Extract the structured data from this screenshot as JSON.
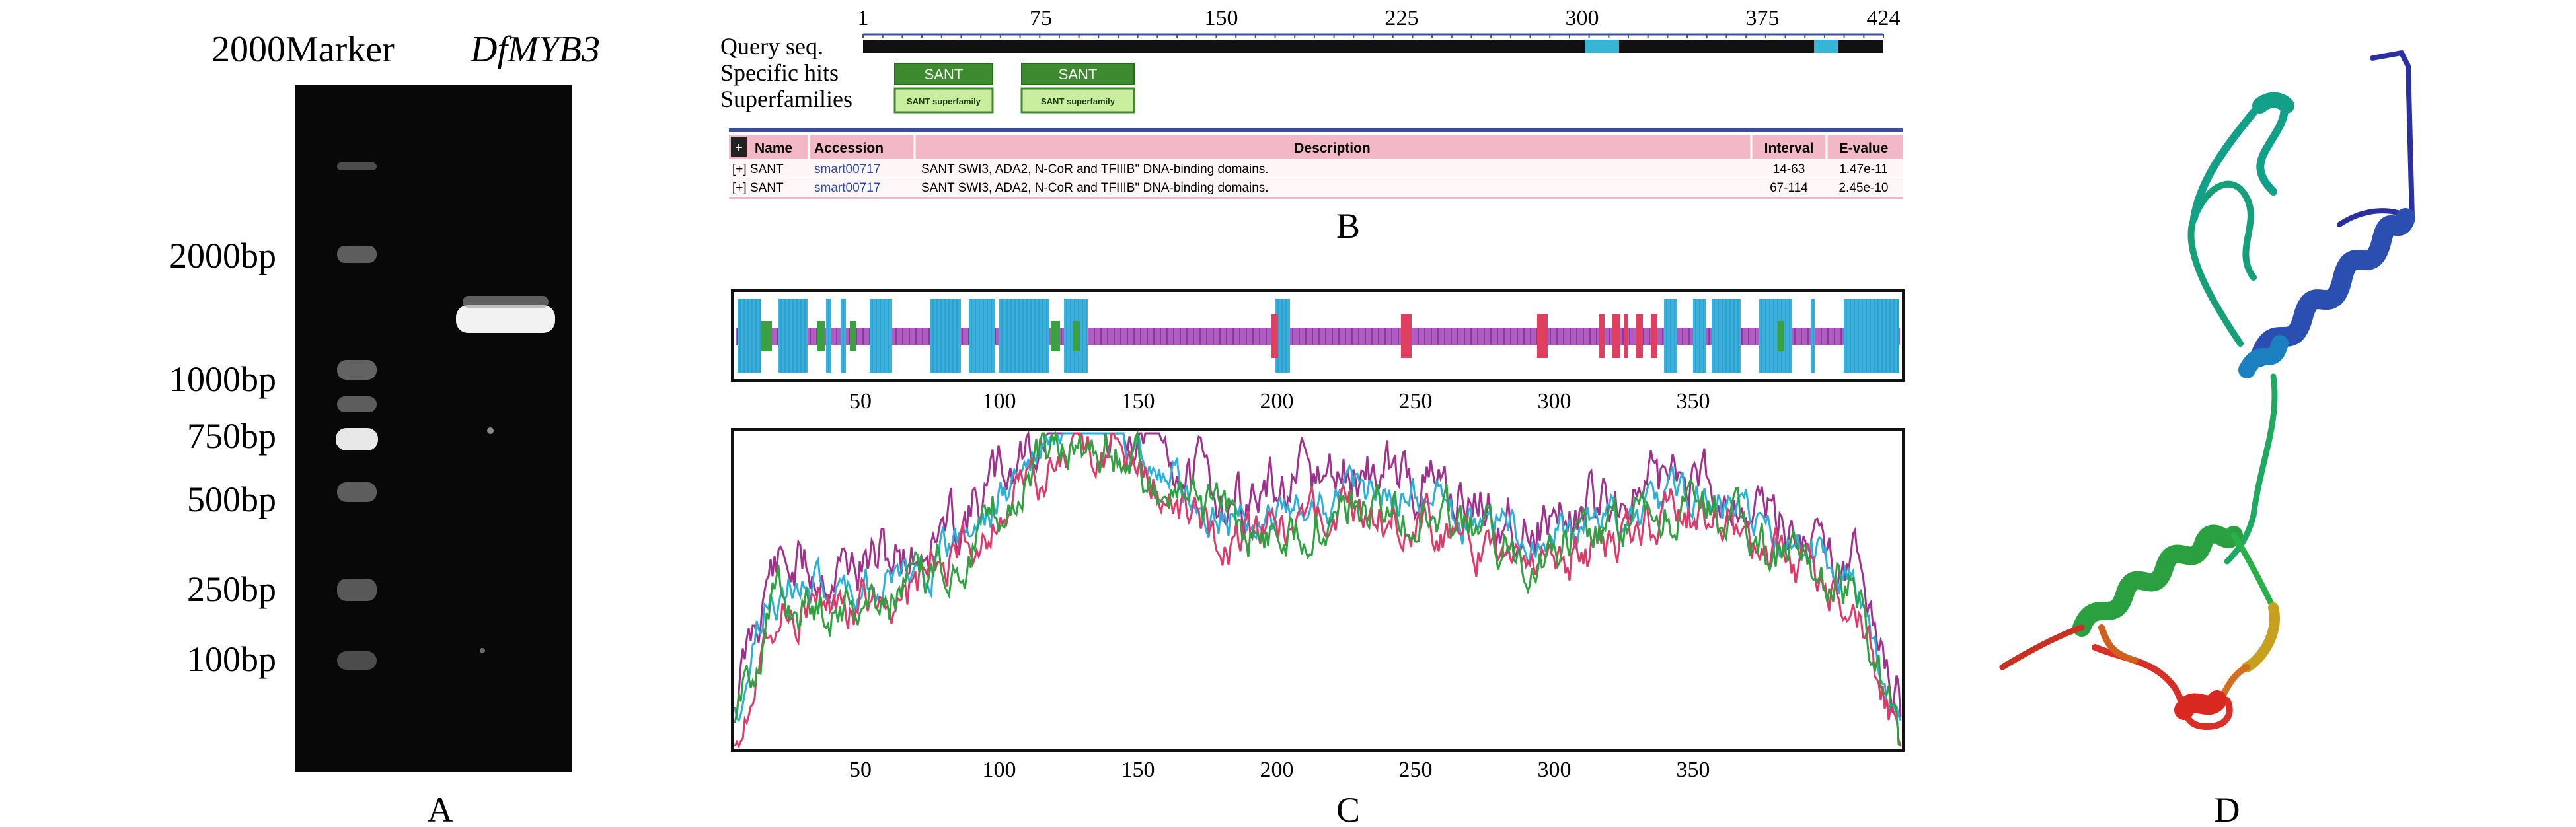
{
  "panelA": {
    "header_marker": "2000Marker",
    "header_gene": "DfMYB3",
    "ladder": [
      "2000bp",
      "1000bp",
      "750bp",
      "500bp",
      "250bp",
      "100bp"
    ],
    "caption": "A"
  },
  "panelB": {
    "labels": [
      "Query seq.",
      "Specific hits",
      "Superfamilies"
    ],
    "ticks": [
      "1",
      "75",
      "150",
      "225",
      "300",
      "375",
      "424"
    ],
    "hit_label": "SANT",
    "superfamily_label": "SANT superfamily",
    "table": {
      "headers": [
        "Name",
        "Accession",
        "Description",
        "Interval",
        "E-value"
      ],
      "rows": [
        [
          "[+] SANT",
          "smart00717",
          "SANT SWI3, ADA2, N-CoR and TFIIIB\" DNA-binding domains.",
          "14-63",
          "1.47e-11"
        ],
        [
          "[+] SANT",
          "smart00717",
          "SANT SWI3, ADA2, N-CoR and TFIIIB\" DNA-binding domains.",
          "67-114",
          "2.45e-10"
        ]
      ]
    },
    "caption": "B"
  },
  "panelC": {
    "ticks": [
      "50",
      "100",
      "150",
      "200",
      "250",
      "300",
      "350"
    ],
    "caption": "C"
  },
  "panelD": {
    "caption": "D"
  }
}
